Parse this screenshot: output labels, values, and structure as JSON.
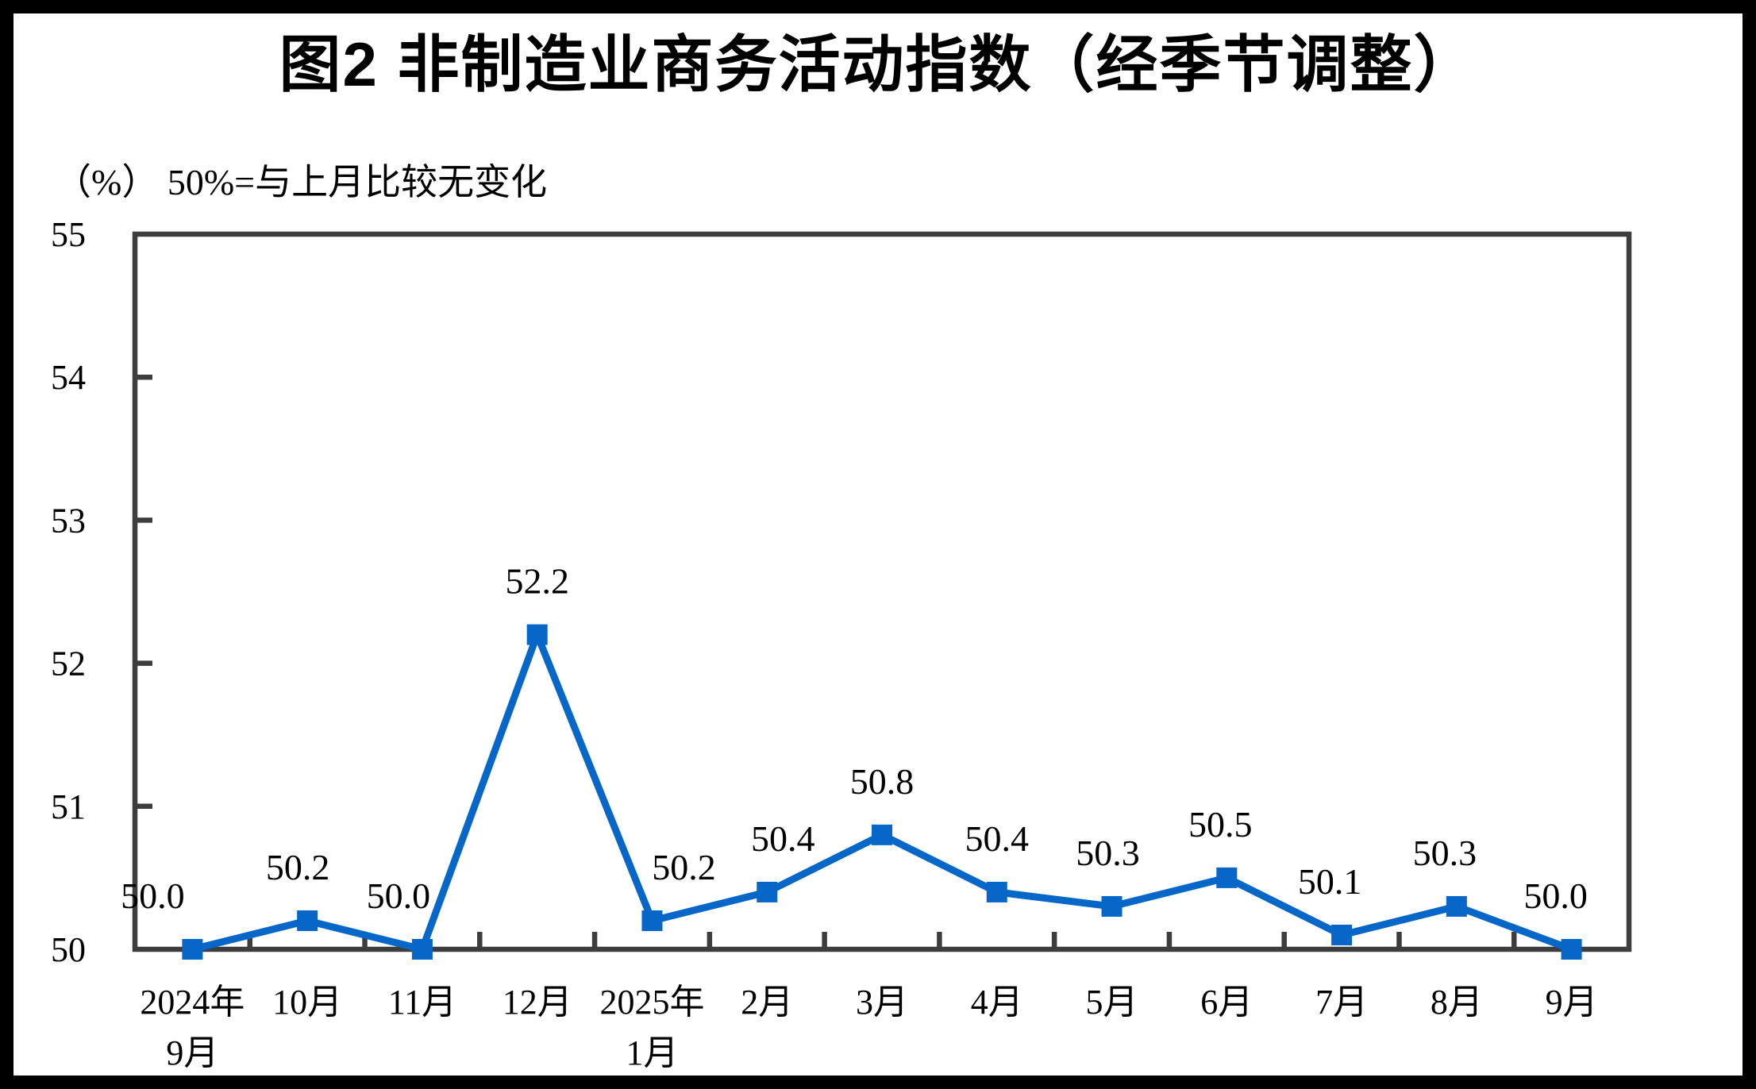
{
  "title": "图2  非制造业商务活动指数（经季节调整）",
  "subtitle": "（%） 50%=与上月比较无变化",
  "chart_data": {
    "type": "line",
    "categories": [
      "2024年\n9月",
      "10月",
      "11月",
      "12月",
      "2025年\n1月",
      "2月",
      "3月",
      "4月",
      "5月",
      "6月",
      "7月",
      "8月",
      "9月"
    ],
    "values": [
      50.0,
      50.2,
      50.0,
      52.2,
      50.2,
      50.4,
      50.8,
      50.4,
      50.3,
      50.5,
      50.1,
      50.3,
      50.0
    ],
    "data_labels": [
      "50.0",
      "50.2",
      "50.0",
      "52.2",
      "50.2",
      "50.4",
      "50.8",
      "50.4",
      "50.3",
      "50.5",
      "50.1",
      "50.3",
      "50.0"
    ],
    "ytick_labels": [
      "50",
      "51",
      "52",
      "53",
      "54",
      "55"
    ],
    "yticks": [
      50,
      51,
      52,
      53,
      54,
      55
    ],
    "ylim": [
      50,
      55
    ],
    "grid": false,
    "legend_position": "none",
    "line_color": "#0767C8",
    "marker": "square",
    "marker_color": "#0767C8",
    "axis_color": "#3D3D3D",
    "text_color": "#000000"
  }
}
